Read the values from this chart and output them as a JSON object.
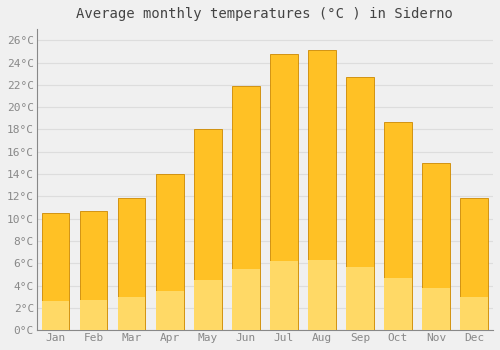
{
  "title": "Average monthly temperatures (°C ) in Siderno",
  "months": [
    "Jan",
    "Feb",
    "Mar",
    "Apr",
    "May",
    "Jun",
    "Jul",
    "Aug",
    "Sep",
    "Oct",
    "Nov",
    "Dec"
  ],
  "temperatures": [
    10.5,
    10.7,
    11.9,
    14.0,
    18.0,
    21.9,
    24.8,
    25.1,
    22.7,
    18.7,
    15.0,
    11.9
  ],
  "bar_color_top": "#FFA500",
  "bar_color_bottom": "#FFD040",
  "bar_edge_color": "#CC8800",
  "background_color": "#F0F0F0",
  "plot_bg_color": "#F0F0F0",
  "grid_color": "#DDDDDD",
  "ylim": [
    0,
    27
  ],
  "ytick_step": 2,
  "title_fontsize": 10,
  "tick_fontsize": 8,
  "tick_color": "#888888",
  "title_color": "#444444",
  "font_family": "monospace"
}
